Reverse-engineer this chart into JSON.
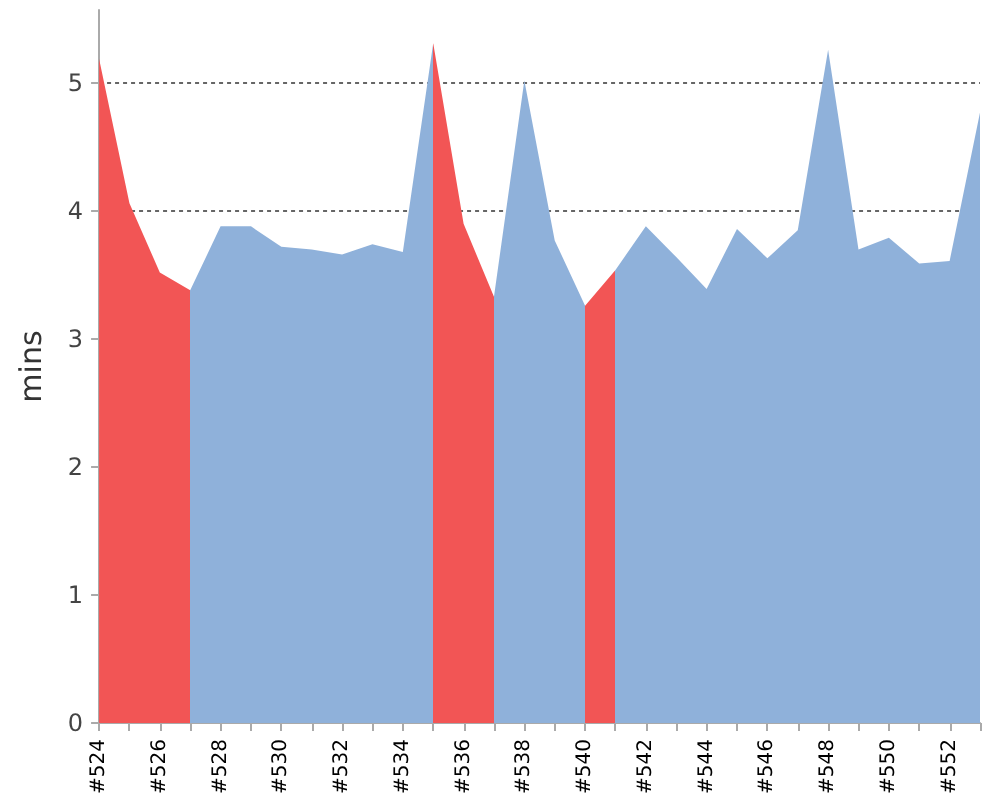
{
  "chart_data": {
    "type": "area",
    "ylabel": "mins",
    "categories": [
      "#524",
      null,
      "#526",
      null,
      "#528",
      null,
      "#530",
      null,
      "#532",
      null,
      "#534",
      null,
      "#536",
      null,
      "#538",
      null,
      "#540",
      null,
      "#542",
      null,
      "#544",
      null,
      "#546",
      null,
      "#548",
      null,
      "#550",
      null,
      "#552",
      null
    ],
    "values": [
      5.19,
      4.06,
      3.52,
      3.38,
      3.88,
      3.88,
      3.72,
      3.7,
      3.66,
      3.74,
      3.68,
      5.31,
      3.9,
      3.33,
      5.02,
      3.77,
      3.26,
      3.54,
      3.88,
      3.64,
      3.39,
      3.86,
      3.63,
      3.85,
      5.26,
      3.7,
      3.79,
      3.59,
      3.61,
      4.77
    ],
    "colors": [
      "#f25555",
      "#f25555",
      "#f25555",
      "#8fb1da",
      "#8fb1da",
      "#8fb1da",
      "#8fb1da",
      "#8fb1da",
      "#8fb1da",
      "#8fb1da",
      "#8fb1da",
      "#f25555",
      "#f25555",
      "#8fb1da",
      "#8fb1da",
      "#8fb1da",
      "#f25555",
      "#8fb1da",
      "#8fb1da",
      "#8fb1da",
      "#8fb1da",
      "#8fb1da",
      "#8fb1da",
      "#8fb1da",
      "#8fb1da",
      "#8fb1da",
      "#8fb1da",
      "#8fb1da",
      "#8fb1da",
      "#8fb1da"
    ],
    "ylim": [
      0,
      5.57
    ],
    "yticks": [
      0,
      1,
      2,
      3,
      4,
      5
    ],
    "grid": "y"
  }
}
